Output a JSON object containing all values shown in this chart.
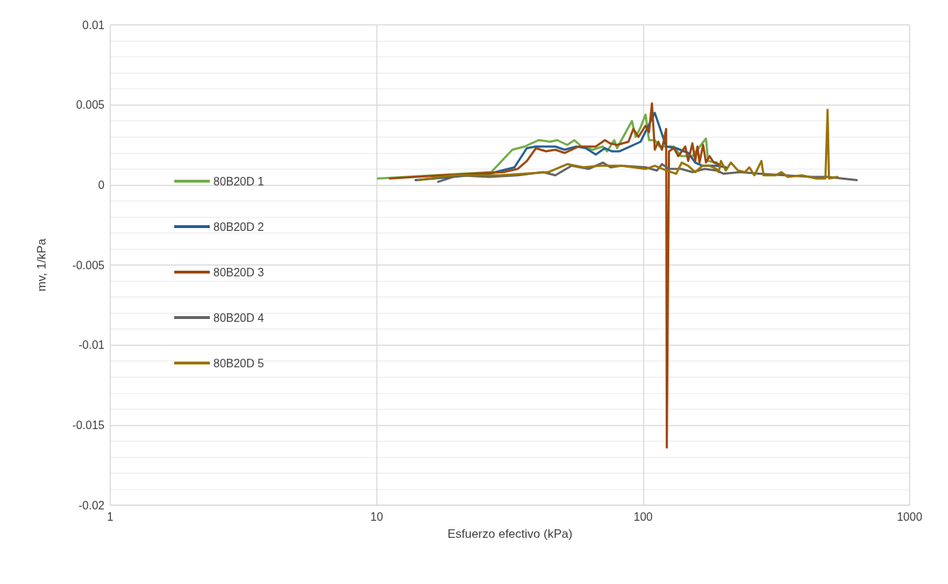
{
  "chart_data": {
    "type": "line",
    "xlabel": "Esfuerzo efectivo (kPa)",
    "ylabel": "mv, 1/kPa",
    "log": "x",
    "xlim": [
      1,
      1000
    ],
    "xticks": [
      1,
      10,
      100,
      1000
    ],
    "ylim": [
      -0.02,
      0.01
    ],
    "yticks": [
      -0.02,
      -0.015,
      -0.01,
      -0.005,
      0,
      0.005,
      0.01
    ],
    "grid": true,
    "legend": "left",
    "marker": "none",
    "line_style": "solid",
    "series": [
      {
        "name": "80B20D 1",
        "color": "#70ad47",
        "x": [
          10.1,
          26.9,
          32.3,
          35.9,
          40.6,
          44.8,
          47.6,
          51.9,
          55.2,
          58.7,
          64.7,
          70.6,
          73.2,
          77.9,
          79.8,
          90.8,
          93.7,
          97.8,
          102.1,
          105.2,
          110.6,
          115.4,
          130.5,
          138.8,
          153.1,
          172.1,
          175.3,
          188.7
        ],
        "values": [
          0.0004,
          0.0008,
          0.0022,
          0.0024,
          0.0028,
          0.0027,
          0.0028,
          0.0025,
          0.0028,
          0.0024,
          0.0022,
          0.0024,
          0.0021,
          0.0028,
          0.0023,
          0.004,
          0.003,
          0.0036,
          0.0044,
          0.0028,
          0.0028,
          0.0024,
          0.0024,
          0.0018,
          0.0018,
          0.0029,
          0.0015,
          0.0014
        ]
      },
      {
        "name": "80B20D 2",
        "color": "#255e91",
        "x": [
          14.0,
          26.4,
          32.9,
          36.6,
          39.6,
          46.8,
          50.7,
          56.2,
          60.9,
          66.4,
          71.9,
          76.4,
          81.3,
          86.5,
          97.8,
          110.6,
          115.4,
          122.0,
          133.0,
          147.6,
          156.9,
          166.9,
          188.7,
          204.4
        ],
        "values": [
          0.0003,
          0.0007,
          0.0011,
          0.0023,
          0.0024,
          0.0024,
          0.0022,
          0.0024,
          0.0023,
          0.0019,
          0.0023,
          0.0021,
          0.0021,
          0.0023,
          0.0027,
          0.0045,
          0.0036,
          0.0024,
          0.0023,
          0.002,
          0.0014,
          0.0012,
          0.0012,
          0.0011
        ]
      },
      {
        "name": "80B20D 3",
        "color": "#9e480e",
        "x": [
          11.2,
          17.5,
          29.9,
          33.8,
          36.6,
          39.6,
          43.2,
          46.8,
          50.7,
          57.3,
          66.4,
          71.9,
          75.1,
          79.8,
          88.1,
          91.9,
          96.0,
          102.1,
          105.2,
          107.9,
          110.6,
          114.0,
          117.6,
          122.0,
          122.7,
          125.0,
          130.5,
          135.5,
          144.0,
          147.6,
          153.1,
          156.9,
          159.8,
          162.8,
          167.9,
          172.1,
          177.5,
          184.1,
          192.2
        ],
        "values": [
          0.0004,
          0.0006,
          0.0008,
          0.001,
          0.0015,
          0.0023,
          0.0021,
          0.0022,
          0.002,
          0.0024,
          0.0024,
          0.0028,
          0.0026,
          0.0025,
          0.0027,
          0.0035,
          0.003,
          0.0037,
          0.0033,
          0.0051,
          0.0022,
          0.0027,
          0.0022,
          0.0035,
          -0.0164,
          0.0021,
          0.0023,
          0.0018,
          0.0024,
          0.0015,
          0.0026,
          0.0015,
          0.0024,
          0.0014,
          0.0025,
          0.0014,
          0.0018,
          0.0014,
          0.0013
        ]
      },
      {
        "name": "80B20D 4",
        "color": "#636363",
        "x": [
          17.0,
          20.2,
          26.4,
          33.8,
          42.1,
          46.8,
          53.9,
          62.4,
          70.6,
          75.5,
          82.8,
          102.1,
          112.6,
          117.6,
          125.0,
          138.8,
          153.1,
          170.0,
          188.7,
          200.7,
          231.2,
          272.9,
          340.4,
          427.2,
          492.2,
          633.4
        ],
        "values": [
          0.0002,
          0.0006,
          0.0005,
          0.0006,
          0.0008,
          0.0006,
          0.0012,
          0.001,
          0.0014,
          0.0011,
          0.0012,
          0.0011,
          0.0009,
          0.0013,
          0.001,
          0.001,
          0.0008,
          0.001,
          0.0009,
          0.0007,
          0.0008,
          0.0007,
          0.0006,
          0.0005,
          0.0005,
          0.0003
        ]
      },
      {
        "name": "80B20D 5",
        "color": "#997300",
        "x": [
          14.3,
          19.4,
          29.1,
          44.0,
          51.9,
          59.8,
          68.9,
          76.4,
          82.8,
          102.1,
          110.6,
          122.7,
          133.0,
          139.6,
          147.6,
          156.9,
          166.9,
          177.5,
          188.7,
          192.2,
          195.8,
          204.4,
          213.4,
          226.9,
          241.3,
          250.4,
          261.4,
          278.0,
          283.1,
          314.3,
          330.1,
          348.9,
          394.5,
          446.0,
          483.2,
          492.2,
          498.3,
          536.5
        ],
        "values": [
          0.0003,
          0.0006,
          0.0006,
          0.0008,
          0.0013,
          0.0011,
          0.0012,
          0.0012,
          0.0012,
          0.001,
          0.0012,
          0.0009,
          0.0007,
          0.0014,
          0.0012,
          0.0008,
          0.0012,
          0.0012,
          0.001,
          0.0008,
          0.0015,
          0.0009,
          0.0014,
          0.0009,
          0.0008,
          0.0011,
          0.0006,
          0.0015,
          0.0006,
          0.0006,
          0.0008,
          0.0005,
          0.0006,
          0.0004,
          0.0004,
          0.0047,
          0.0004,
          0.0005
        ]
      }
    ]
  }
}
